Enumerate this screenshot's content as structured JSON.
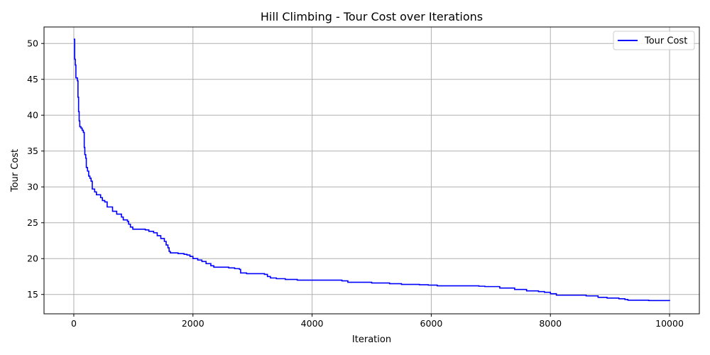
{
  "chart_data": {
    "type": "line",
    "title": "Hill Climbing - Tour Cost over Iterations",
    "xlabel": "Iteration",
    "ylabel": "Tour Cost",
    "xlim": [
      -500,
      10500
    ],
    "ylim": [
      12.3,
      52.3
    ],
    "xticks": [
      0,
      2000,
      4000,
      6000,
      8000,
      10000
    ],
    "yticks": [
      15,
      20,
      25,
      30,
      35,
      40,
      45,
      50
    ],
    "grid": true,
    "legend": {
      "position": "top-right",
      "entries": [
        "Tour Cost"
      ]
    },
    "series": [
      {
        "name": "Tour Cost",
        "color": "#0000ff",
        "step": true,
        "points": [
          [
            0,
            50.6
          ],
          [
            15,
            47.8
          ],
          [
            25,
            47.0
          ],
          [
            35,
            45.2
          ],
          [
            60,
            44.8
          ],
          [
            70,
            42.5
          ],
          [
            80,
            40.5
          ],
          [
            90,
            39.2
          ],
          [
            100,
            38.4
          ],
          [
            120,
            38.2
          ],
          [
            140,
            37.9
          ],
          [
            160,
            37.6
          ],
          [
            175,
            35.5
          ],
          [
            185,
            34.5
          ],
          [
            200,
            34.0
          ],
          [
            210,
            32.7
          ],
          [
            230,
            32.2
          ],
          [
            250,
            31.5
          ],
          [
            270,
            31.2
          ],
          [
            290,
            30.8
          ],
          [
            310,
            29.7
          ],
          [
            350,
            29.3
          ],
          [
            380,
            28.9
          ],
          [
            450,
            28.5
          ],
          [
            480,
            28.1
          ],
          [
            520,
            27.9
          ],
          [
            560,
            27.2
          ],
          [
            650,
            26.6
          ],
          [
            720,
            26.2
          ],
          [
            800,
            25.8
          ],
          [
            830,
            25.4
          ],
          [
            900,
            25.2
          ],
          [
            920,
            24.8
          ],
          [
            950,
            24.4
          ],
          [
            990,
            24.1
          ],
          [
            1200,
            24.0
          ],
          [
            1260,
            23.8
          ],
          [
            1340,
            23.6
          ],
          [
            1400,
            23.2
          ],
          [
            1460,
            22.8
          ],
          [
            1520,
            22.4
          ],
          [
            1550,
            21.9
          ],
          [
            1580,
            21.5
          ],
          [
            1600,
            21.0
          ],
          [
            1620,
            20.8
          ],
          [
            1750,
            20.7
          ],
          [
            1850,
            20.6
          ],
          [
            1900,
            20.5
          ],
          [
            1950,
            20.3
          ],
          [
            2000,
            20.0
          ],
          [
            2080,
            19.8
          ],
          [
            2150,
            19.6
          ],
          [
            2220,
            19.3
          ],
          [
            2300,
            19.0
          ],
          [
            2350,
            18.8
          ],
          [
            2600,
            18.7
          ],
          [
            2700,
            18.6
          ],
          [
            2780,
            18.5
          ],
          [
            2800,
            18.0
          ],
          [
            2900,
            17.9
          ],
          [
            3200,
            17.8
          ],
          [
            3250,
            17.5
          ],
          [
            3300,
            17.3
          ],
          [
            3400,
            17.2
          ],
          [
            3550,
            17.1
          ],
          [
            3750,
            17.0
          ],
          [
            4500,
            16.9
          ],
          [
            4600,
            16.7
          ],
          [
            4900,
            16.7
          ],
          [
            5000,
            16.6
          ],
          [
            5300,
            16.5
          ],
          [
            5500,
            16.4
          ],
          [
            5800,
            16.35
          ],
          [
            5950,
            16.3
          ],
          [
            6100,
            16.2
          ],
          [
            6800,
            16.15
          ],
          [
            6900,
            16.1
          ],
          [
            7150,
            15.9
          ],
          [
            7400,
            15.7
          ],
          [
            7600,
            15.5
          ],
          [
            7800,
            15.4
          ],
          [
            7900,
            15.3
          ],
          [
            8000,
            15.1
          ],
          [
            8100,
            14.9
          ],
          [
            8600,
            14.8
          ],
          [
            8800,
            14.6
          ],
          [
            8950,
            14.5
          ],
          [
            9150,
            14.4
          ],
          [
            9250,
            14.3
          ],
          [
            9300,
            14.2
          ],
          [
            9650,
            14.15
          ],
          [
            10000,
            14.1
          ]
        ]
      }
    ]
  }
}
